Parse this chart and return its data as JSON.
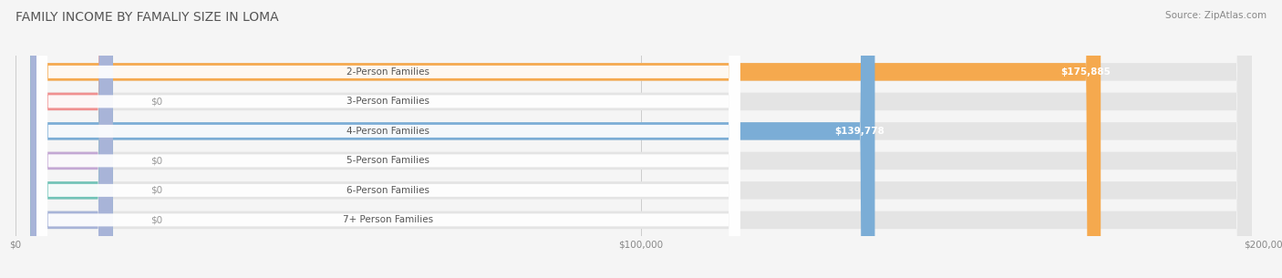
{
  "title": "FAMILY INCOME BY FAMALIY SIZE IN LOMA",
  "source": "Source: ZipAtlas.com",
  "categories": [
    "2-Person Families",
    "3-Person Families",
    "4-Person Families",
    "5-Person Families",
    "6-Person Families",
    "7+ Person Families"
  ],
  "values": [
    175885,
    0,
    139778,
    0,
    0,
    0
  ],
  "bar_colors": [
    "#F5A94E",
    "#F09090",
    "#7BADD6",
    "#C4A8D4",
    "#72C4B8",
    "#A8B4D8"
  ],
  "value_labels": [
    "$175,885",
    "$0",
    "$139,778",
    "$0",
    "$0",
    "$0"
  ],
  "xlim": [
    0,
    200000
  ],
  "xtick_labels": [
    "$0",
    "$100,000",
    "$200,000"
  ],
  "xtick_values": [
    0,
    100000,
    200000
  ],
  "bg_color": "#f5f5f5",
  "bar_bg_color": "#e4e4e4",
  "title_fontsize": 10,
  "label_fontsize": 7.5,
  "value_fontsize": 7.5,
  "source_fontsize": 7.5
}
